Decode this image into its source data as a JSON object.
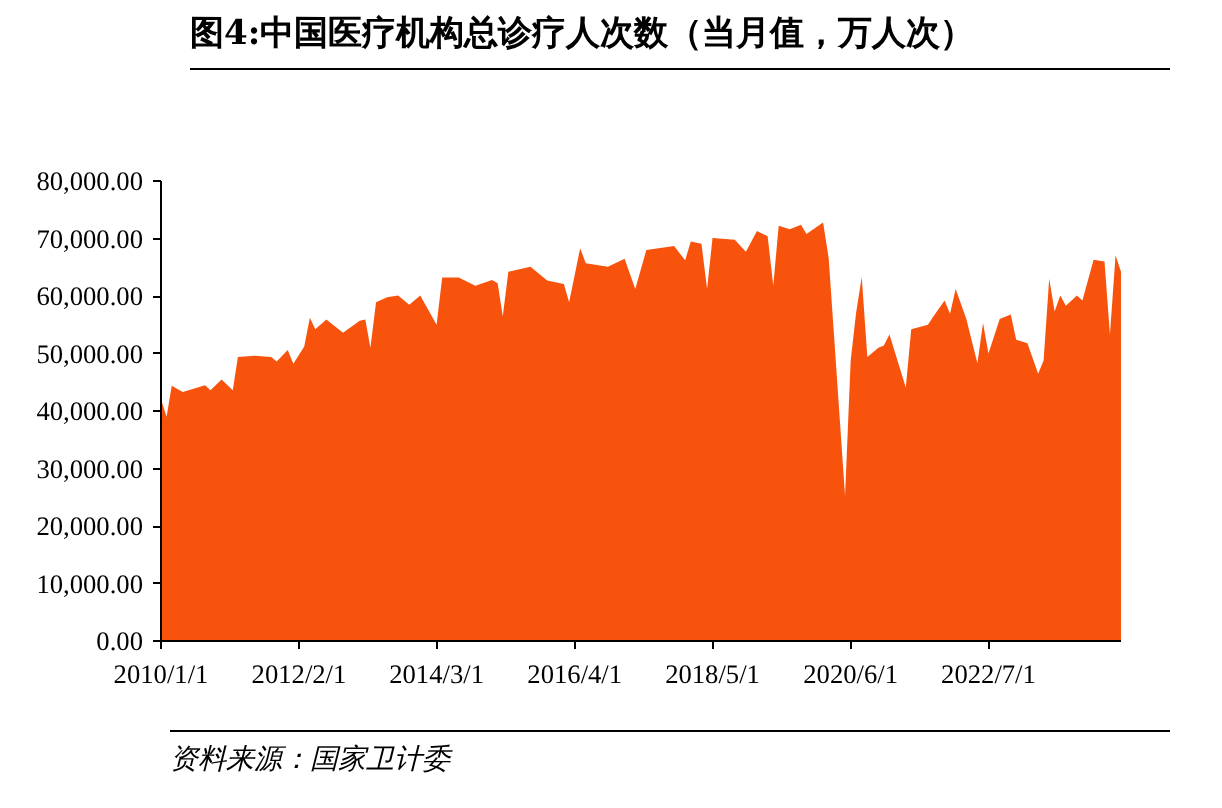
{
  "chart_data": {
    "type": "area",
    "title": "图4:中国医疗机构总诊疗人次数（当月值，万人次）",
    "annotations": [
      "资料来源：国家卫计委"
    ],
    "x": [
      "2010-01",
      "2010-02",
      "2010-03",
      "2010-05",
      "2010-09",
      "2010-10",
      "2010-12",
      "2011-02",
      "2011-03",
      "2011-06",
      "2011-09",
      "2011-10",
      "2011-12",
      "2012-01",
      "2012-03",
      "2012-04",
      "2012-05",
      "2012-07",
      "2012-10",
      "2013-01",
      "2013-02",
      "2013-03",
      "2013-04",
      "2013-06",
      "2013-08",
      "2013-10",
      "2013-12",
      "2014-03",
      "2014-04",
      "2014-07",
      "2014-10",
      "2015-01",
      "2015-02",
      "2015-03",
      "2015-04",
      "2015-08",
      "2015-11",
      "2016-02",
      "2016-03",
      "2016-05",
      "2016-06",
      "2016-10",
      "2017-01",
      "2017-03",
      "2017-05",
      "2017-10",
      "2017-12",
      "2018-01",
      "2018-03",
      "2018-04",
      "2018-05",
      "2018-09",
      "2018-11",
      "2019-01",
      "2019-03",
      "2019-04",
      "2019-05",
      "2019-07",
      "2019-09",
      "2019-10",
      "2020-01",
      "2020-02",
      "2020-05",
      "2020-06",
      "2020-07",
      "2020-08",
      "2020-09",
      "2020-11",
      "2020-12",
      "2021-01",
      "2021-04",
      "2021-05",
      "2021-08",
      "2021-09",
      "2021-11",
      "2021-12",
      "2022-01",
      "2022-03",
      "2022-05",
      "2022-06",
      "2022-07",
      "2022-09",
      "2022-11",
      "2022-12",
      "2023-02",
      "2023-04",
      "2023-05",
      "2023-06",
      "2023-07",
      "2023-08",
      "2023-09",
      "2023-11",
      "2023-12",
      "2024-02",
      "2024-04",
      "2024-05",
      "2024-06",
      "2024-07"
    ],
    "series": [
      {
        "color": "#f7530d",
        "values": [
          42000,
          39000,
          44400,
          43300,
          44500,
          43600,
          45500,
          43600,
          49400,
          49600,
          49400,
          48600,
          50600,
          48200,
          51200,
          56200,
          54200,
          55900,
          53600,
          55700,
          55900,
          51000,
          58900,
          59800,
          60100,
          58500,
          60100,
          55000,
          63200,
          63200,
          61800,
          62800,
          62200,
          56500,
          64200,
          65100,
          62700,
          62100,
          58900,
          68300,
          65700,
          65100,
          66500,
          61200,
          68000,
          68700,
          66200,
          69500,
          69100,
          61200,
          70100,
          69800,
          67700,
          71300,
          70400,
          61800,
          72200,
          71600,
          72400,
          70800,
          72800,
          66500,
          25200,
          48800,
          57100,
          63300,
          49400,
          51000,
          51400,
          53300,
          44100,
          54200,
          55000,
          56500,
          59200,
          56900,
          61200,
          56000,
          48300,
          55300,
          50000,
          56000,
          56800,
          52400,
          51800,
          46500,
          48800,
          63000,
          57300,
          60100,
          58300,
          60100,
          59200,
          66300,
          66000,
          53300,
          67100,
          64200
        ]
      }
    ],
    "xlim": [
      "2010-01",
      "2024-07"
    ],
    "xticks": [
      {
        "value": "2010-01-01",
        "label": "2010/1/1"
      },
      {
        "value": "2012-02-01",
        "label": "2012/2/1"
      },
      {
        "value": "2014-03-01",
        "label": "2014/3/1"
      },
      {
        "value": "2016-04-01",
        "label": "2016/4/1"
      },
      {
        "value": "2018-05-01",
        "label": "2018/5/1"
      },
      {
        "value": "2020-06-01",
        "label": "2020/6/1"
      },
      {
        "value": "2022-07-01",
        "label": "2022/7/1"
      }
    ],
    "ylim": [
      0,
      80000
    ],
    "yticks": [
      {
        "value": 0,
        "label": "0.00"
      },
      {
        "value": 10000,
        "label": "10,000.00"
      },
      {
        "value": 20000,
        "label": "20,000.00"
      },
      {
        "value": 30000,
        "label": "30,000.00"
      },
      {
        "value": 40000,
        "label": "40,000.00"
      },
      {
        "value": 50000,
        "label": "50,000.00"
      },
      {
        "value": 60000,
        "label": "60,000.00"
      },
      {
        "value": 70000,
        "label": "70,000.00"
      },
      {
        "value": 80000,
        "label": "80,000.00"
      }
    ],
    "grid": false
  }
}
